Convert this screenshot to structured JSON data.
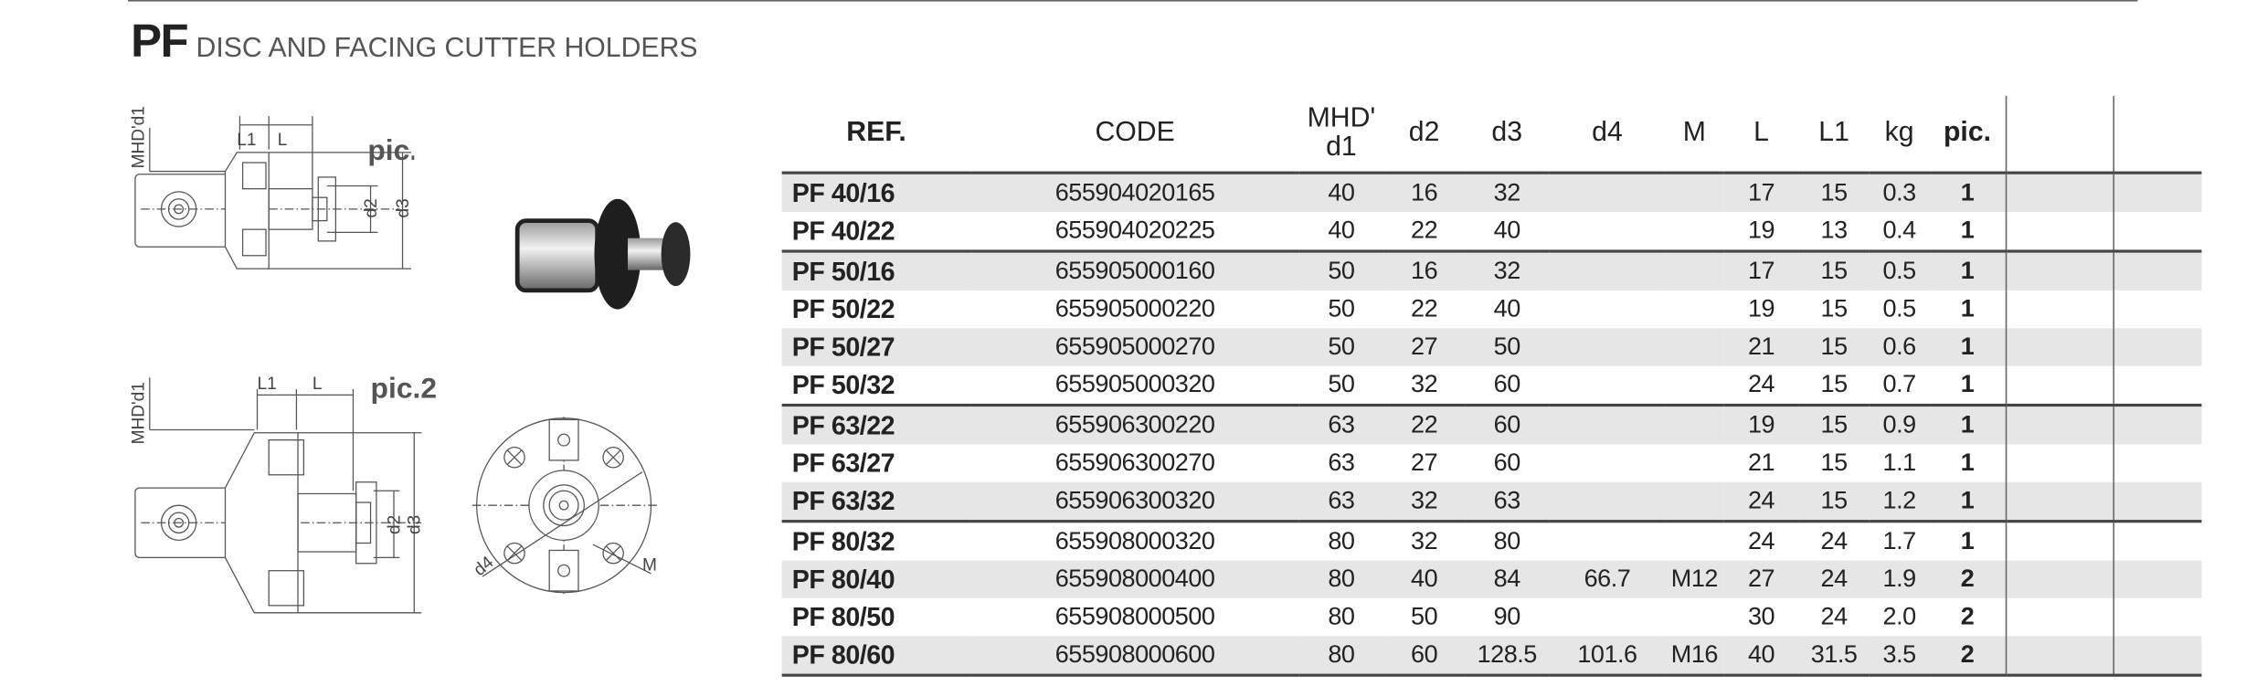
{
  "header": {
    "code": "PF",
    "title": "DISC AND FACING CUTTER HOLDERS"
  },
  "figures": {
    "pic1_label": "pic.1",
    "pic2_label": "pic.2",
    "dims": {
      "mhd": "MHD'd1",
      "l1": "L1",
      "l": "L",
      "d2": "d2",
      "d3": "d3",
      "d4": "d4",
      "m": "M"
    }
  },
  "table": {
    "headers": {
      "ref": "REF.",
      "code": "CODE",
      "d1_top": "MHD'",
      "d1_bottom": "d1",
      "d2": "d2",
      "d3": "d3",
      "d4": "d4",
      "m": "M",
      "l": "L",
      "l1": "L1",
      "kg": "kg",
      "pic": "pic."
    },
    "rows": [
      {
        "ref": "PF 40/16",
        "code": "655904020165",
        "d1": "40",
        "d2": "16",
        "d3": "32",
        "d4": "",
        "m": "",
        "l": "17",
        "l1": "15",
        "kg": "0.3",
        "pic": "1"
      },
      {
        "ref": "PF 40/22",
        "code": "655904020225",
        "d1": "40",
        "d2": "22",
        "d3": "40",
        "d4": "",
        "m": "",
        "l": "19",
        "l1": "13",
        "kg": "0.4",
        "pic": "1"
      },
      {
        "ref": "PF 50/16",
        "code": "655905000160",
        "d1": "50",
        "d2": "16",
        "d3": "32",
        "d4": "",
        "m": "",
        "l": "17",
        "l1": "15",
        "kg": "0.5",
        "pic": "1"
      },
      {
        "ref": "PF 50/22",
        "code": "655905000220",
        "d1": "50",
        "d2": "22",
        "d3": "40",
        "d4": "",
        "m": "",
        "l": "19",
        "l1": "15",
        "kg": "0.5",
        "pic": "1"
      },
      {
        "ref": "PF 50/27",
        "code": "655905000270",
        "d1": "50",
        "d2": "27",
        "d3": "50",
        "d4": "",
        "m": "",
        "l": "21",
        "l1": "15",
        "kg": "0.6",
        "pic": "1"
      },
      {
        "ref": "PF 50/32",
        "code": "655905000320",
        "d1": "50",
        "d2": "32",
        "d3": "60",
        "d4": "",
        "m": "",
        "l": "24",
        "l1": "15",
        "kg": "0.7",
        "pic": "1"
      },
      {
        "ref": "PF 63/22",
        "code": "655906300220",
        "d1": "63",
        "d2": "22",
        "d3": "60",
        "d4": "",
        "m": "",
        "l": "19",
        "l1": "15",
        "kg": "0.9",
        "pic": "1"
      },
      {
        "ref": "PF 63/27",
        "code": "655906300270",
        "d1": "63",
        "d2": "27",
        "d3": "60",
        "d4": "",
        "m": "",
        "l": "21",
        "l1": "15",
        "kg": "1.1",
        "pic": "1"
      },
      {
        "ref": "PF 63/32",
        "code": "655906300320",
        "d1": "63",
        "d2": "32",
        "d3": "63",
        "d4": "",
        "m": "",
        "l": "24",
        "l1": "15",
        "kg": "1.2",
        "pic": "1"
      },
      {
        "ref": "PF 80/32",
        "code": "655908000320",
        "d1": "80",
        "d2": "32",
        "d3": "80",
        "d4": "",
        "m": "",
        "l": "24",
        "l1": "24",
        "kg": "1.7",
        "pic": "1"
      },
      {
        "ref": "PF 80/40",
        "code": "655908000400",
        "d1": "80",
        "d2": "40",
        "d3": "84",
        "d4": "66.7",
        "m": "M12",
        "l": "27",
        "l1": "24",
        "kg": "1.9",
        "pic": "2"
      },
      {
        "ref": "PF 80/50",
        "code": "655908000500",
        "d1": "80",
        "d2": "50",
        "d3": "90",
        "d4": "",
        "m": "",
        "l": "30",
        "l1": "24",
        "kg": "2.0",
        "pic": "2"
      },
      {
        "ref": "PF 80/60",
        "code": "655908000600",
        "d1": "80",
        "d2": "60",
        "d3": "128.5",
        "d4": "101.6",
        "m": "M16",
        "l": "40",
        "l1": "31.5",
        "kg": "3.5",
        "pic": "2"
      }
    ]
  }
}
